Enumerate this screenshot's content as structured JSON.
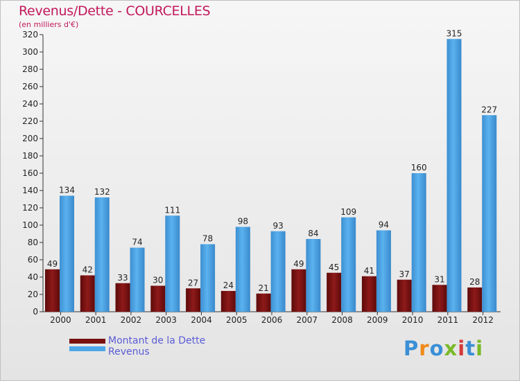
{
  "header": {
    "title": "Revenus/Dette - COURCELLES",
    "subtitle": "(en milliers d'€)"
  },
  "legend": {
    "items": [
      {
        "label": "Montant de la Dette",
        "color": "#7a1010"
      },
      {
        "label": "Revenus",
        "color": "#4da6e8"
      }
    ]
  },
  "logo": {
    "text": "Proxiti",
    "colors": [
      "#3a8fd6",
      "#f08a1c",
      "#3a8fd6",
      "#7ab929",
      "#d63a3a",
      "#3a8fd6",
      "#7ab929"
    ]
  },
  "chart_data": {
    "type": "bar",
    "categories": [
      "2000",
      "2001",
      "2002",
      "2003",
      "2004",
      "2005",
      "2006",
      "2007",
      "2008",
      "2009",
      "2010",
      "2011",
      "2012"
    ],
    "series": [
      {
        "name": "Montant de la Dette",
        "color": "#7a1010",
        "values": [
          49,
          42,
          33,
          30,
          27,
          24,
          21,
          49,
          45,
          41,
          37,
          31,
          28
        ]
      },
      {
        "name": "Revenus",
        "color": "#4da6e8",
        "values": [
          134,
          132,
          74,
          111,
          78,
          98,
          93,
          84,
          109,
          94,
          160,
          315,
          227
        ]
      }
    ],
    "ylim": [
      0,
      320
    ],
    "yticks": [
      0,
      20,
      40,
      60,
      80,
      100,
      120,
      140,
      160,
      180,
      200,
      220,
      240,
      260,
      280,
      300,
      320
    ],
    "grid": false,
    "data_labels": true,
    "legend_position": "bottom-left"
  }
}
